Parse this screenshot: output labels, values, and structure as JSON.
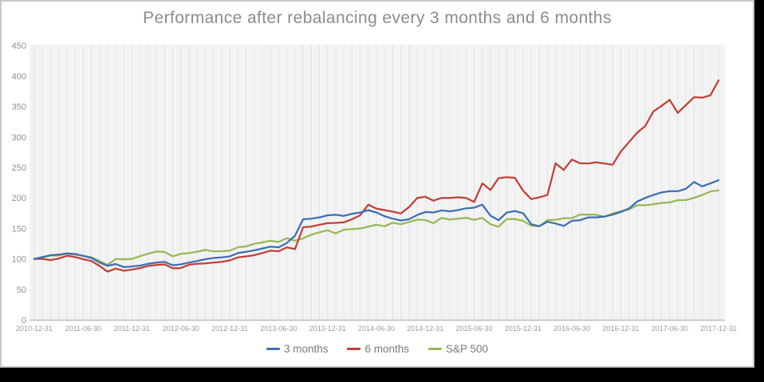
{
  "window": {
    "frame_background": "#ffffff",
    "frame_border_color": "#c9c9c9",
    "outer_background": "#000000"
  },
  "chart_data": {
    "type": "line",
    "title": "Performance after rebalancing every 3 months and 6 months",
    "title_color": "#8c8c8c",
    "x_unit": "monthly",
    "x_range": [
      "2010-12-31",
      "2017-12-31"
    ],
    "x_tick_labels": [
      "2010-12-31",
      "2011-06-30",
      "2011-12-31",
      "2012-06-30",
      "2012-12-31",
      "2013-06-30",
      "2013-12-31",
      "2014-06-30",
      "2014-12-31",
      "2015-06-30",
      "2015-12-31",
      "2016-06-30",
      "2016-12-31",
      "2017-06-30",
      "2017-12-31"
    ],
    "y_ticks": [
      0,
      50,
      100,
      150,
      200,
      250,
      300,
      350,
      400,
      450
    ],
    "ylim": [
      0,
      450
    ],
    "grid": "vertical-gridlines-at-every-monthly-point",
    "legend_position": "bottom-center",
    "panel_fill": "#f3f3f3",
    "gridline_color": "#e3e3e3",
    "axis_line_color": "#bdbdbd",
    "tick_label_color": "#8f8f8f",
    "series": [
      {
        "name": "3 months",
        "color": "#3e6fb4",
        "values": [
          100,
          103,
          106,
          107,
          109,
          108,
          105,
          101.5,
          94,
          88.5,
          91.5,
          86.5,
          87.5,
          89,
          92,
          94,
          95,
          89.5,
          91,
          94,
          96.5,
          99.5,
          101.5,
          102.5,
          104,
          109.5,
          111.5,
          114,
          117,
          120,
          119,
          126,
          138,
          165,
          166,
          168,
          171.5,
          172.5,
          170.5,
          174,
          176,
          180,
          176,
          170,
          166,
          163,
          165,
          172,
          177,
          176,
          179.5,
          178,
          180,
          183,
          184,
          189,
          171,
          163.5,
          176,
          178.5,
          175,
          157,
          153.5,
          161,
          158,
          154,
          162.5,
          163.5,
          168,
          168,
          169.5,
          172.5,
          177,
          182.5,
          194,
          200,
          205,
          209,
          211,
          211,
          215,
          226,
          219,
          224,
          229
        ]
      },
      {
        "name": "6 months",
        "color": "#bf4137",
        "values": [
          100,
          100,
          98,
          100.5,
          105,
          103,
          99.5,
          96.5,
          88.5,
          79,
          84,
          80.5,
          82.5,
          85,
          88.5,
          90,
          91,
          84.5,
          85,
          90.5,
          92,
          92.5,
          94,
          95,
          97.5,
          102.5,
          104,
          106,
          109.5,
          113.5,
          112.5,
          119,
          116,
          152,
          153,
          156,
          158.5,
          159,
          160,
          165,
          171.5,
          189,
          182.5,
          180,
          177.5,
          174.5,
          185,
          200,
          202,
          195.5,
          200,
          200,
          201,
          200,
          193.5,
          224,
          213,
          232.5,
          234,
          233,
          212,
          198,
          201,
          205,
          257,
          246,
          263,
          257,
          256.5,
          258.5,
          256.5,
          254.5,
          276,
          291.5,
          307,
          318,
          342,
          351,
          361,
          339.5,
          352.5,
          365.5,
          364.5,
          368.5,
          393
        ]
      },
      {
        "name": "S&P 500",
        "color": "#95ba53",
        "values": [
          100,
          102.3,
          105.5,
          105.4,
          108.4,
          107,
          105,
          102.8,
          96.9,
          90,
          99.7,
          99.2,
          100,
          104.4,
          108.6,
          112,
          111.2,
          104.2,
          108.3,
          109.7,
          111.8,
          114.6,
          112.3,
          112.6,
          113.4,
          119.1,
          120.4,
          124.8,
          127,
          129.7,
          127.7,
          134,
          129.8,
          133.7,
          139.7,
          143.6,
          147,
          141.7,
          147.9,
          148.9,
          149.8,
          153,
          155.9,
          153.5,
          159.3,
          156.8,
          160.5,
          164.4,
          163.7,
          158.6,
          167.3,
          164.4,
          165.8,
          167.6,
          164,
          167.3,
          156.8,
          152.7,
          165.3,
          165.4,
          162.5,
          154.3,
          153.6,
          163.8,
          164.2,
          166.7,
          166.9,
          172.8,
          172.6,
          172.4,
          169.1,
          174.8,
          178,
          181.2,
          187.9,
          187.9,
          189.6,
          191.8,
          192.7,
          196.4,
          196.5,
          200.3,
          204.8,
          210.5,
          212.6
        ]
      }
    ]
  }
}
